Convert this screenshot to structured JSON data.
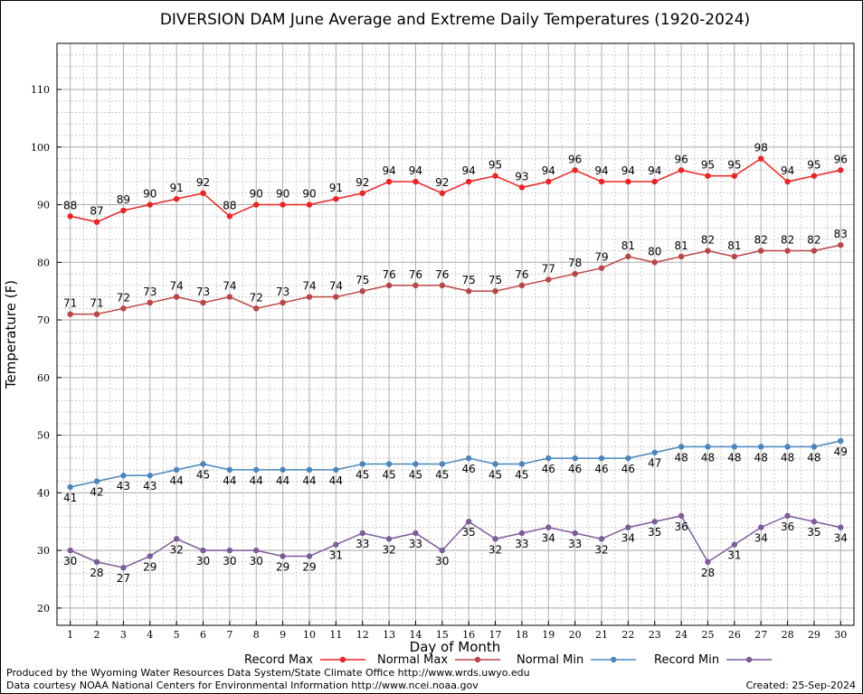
{
  "chart_data": {
    "type": "line",
    "title": "DIVERSION DAM June Average and Extreme Daily Temperatures (1920-2024)",
    "xlabel": "Day of Month",
    "ylabel": "Temperature (F)",
    "xlim": [
      0.5,
      30.5
    ],
    "ylim": [
      17,
      118
    ],
    "yticks": [
      20,
      30,
      40,
      50,
      60,
      70,
      80,
      90,
      100,
      110
    ],
    "x": [
      1,
      2,
      3,
      4,
      5,
      6,
      7,
      8,
      9,
      10,
      11,
      12,
      13,
      14,
      15,
      16,
      17,
      18,
      19,
      20,
      21,
      22,
      23,
      24,
      25,
      26,
      27,
      28,
      29,
      30
    ],
    "grid": true,
    "legend_position": "bottom",
    "series": [
      {
        "name": "Record Max",
        "color": "#ee2222",
        "label_position": "above",
        "values": [
          88,
          87,
          89,
          90,
          91,
          92,
          88,
          90,
          90,
          90,
          91,
          92,
          94,
          94,
          92,
          94,
          95,
          93,
          94,
          96,
          94,
          94,
          94,
          96,
          95,
          95,
          98,
          94,
          95,
          96
        ]
      },
      {
        "name": "Normal Max",
        "color": "#bb4444",
        "label_position": "above",
        "values": [
          71,
          71,
          72,
          73,
          74,
          73,
          74,
          72,
          73,
          74,
          74,
          75,
          76,
          76,
          76,
          75,
          75,
          76,
          77,
          78,
          79,
          81,
          80,
          81,
          82,
          81,
          82,
          82,
          82,
          83
        ]
      },
      {
        "name": "Normal Min",
        "color": "#4a86bd",
        "label_position": "below",
        "values": [
          41,
          42,
          43,
          43,
          44,
          45,
          44,
          44,
          44,
          44,
          44,
          45,
          45,
          45,
          45,
          46,
          45,
          45,
          46,
          46,
          46,
          46,
          47,
          48,
          48,
          48,
          48,
          48,
          48,
          49
        ]
      },
      {
        "name": "Record Min",
        "color": "#7e5b9a",
        "label_position": "below",
        "values": [
          30,
          28,
          27,
          29,
          32,
          30,
          30,
          30,
          29,
          29,
          31,
          33,
          32,
          33,
          30,
          35,
          32,
          33,
          34,
          33,
          32,
          34,
          35,
          36,
          28,
          31,
          34,
          36,
          35,
          34
        ]
      }
    ]
  },
  "footer": {
    "produced_by": "Produced by the Wyoming Water Resources Data System/State Climate Office http://www.wrds.uwyo.edu",
    "data_courtesy": "Data courtesy NOAA National Centers for Environmental Information http://www.ncei.noaa.gov",
    "created": "Created:  25-Sep-2024"
  }
}
